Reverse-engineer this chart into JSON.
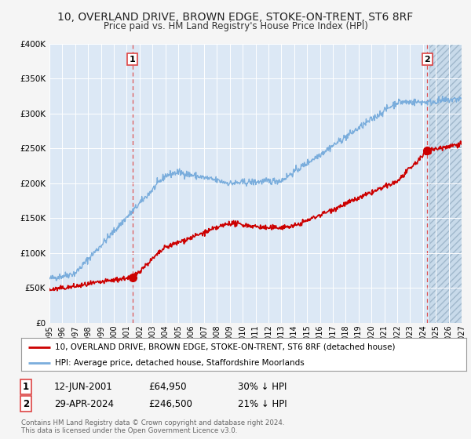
{
  "title": "10, OVERLAND DRIVE, BROWN EDGE, STOKE-ON-TRENT, ST6 8RF",
  "subtitle": "Price paid vs. HM Land Registry's House Price Index (HPI)",
  "ylim": [
    0,
    400000
  ],
  "xlim_start": 1995.0,
  "xlim_end": 2027.0,
  "hatch_start": 2024.5,
  "yticks": [
    0,
    50000,
    100000,
    150000,
    200000,
    250000,
    300000,
    350000,
    400000
  ],
  "ytick_labels": [
    "£0",
    "£50K",
    "£100K",
    "£150K",
    "£200K",
    "£250K",
    "£300K",
    "£350K",
    "£400K"
  ],
  "xticks": [
    1995,
    1996,
    1997,
    1998,
    1999,
    2000,
    2001,
    2002,
    2003,
    2004,
    2005,
    2006,
    2007,
    2008,
    2009,
    2010,
    2011,
    2012,
    2013,
    2014,
    2015,
    2016,
    2017,
    2018,
    2019,
    2020,
    2021,
    2022,
    2023,
    2024,
    2025,
    2026,
    2027
  ],
  "sale1_x": 2001.45,
  "sale1_y": 64950,
  "sale2_x": 2024.33,
  "sale2_y": 246500,
  "red_color": "#cc0000",
  "blue_color": "#7aaddc",
  "vline_color": "#dd4444",
  "bg_color": "#f5f5f5",
  "plot_bg": "#dce8f5",
  "hatch_color": "#b8cce0",
  "legend_label_red": "10, OVERLAND DRIVE, BROWN EDGE, STOKE-ON-TRENT, ST6 8RF (detached house)",
  "legend_label_blue": "HPI: Average price, detached house, Staffordshire Moorlands",
  "sale1_date": "12-JUN-2001",
  "sale1_price": "£64,950",
  "sale1_hpi": "30% ↓ HPI",
  "sale2_date": "29-APR-2024",
  "sale2_price": "£246,500",
  "sale2_hpi": "21% ↓ HPI",
  "footer1": "Contains HM Land Registry data © Crown copyright and database right 2024.",
  "footer2": "This data is licensed under the Open Government Licence v3.0."
}
